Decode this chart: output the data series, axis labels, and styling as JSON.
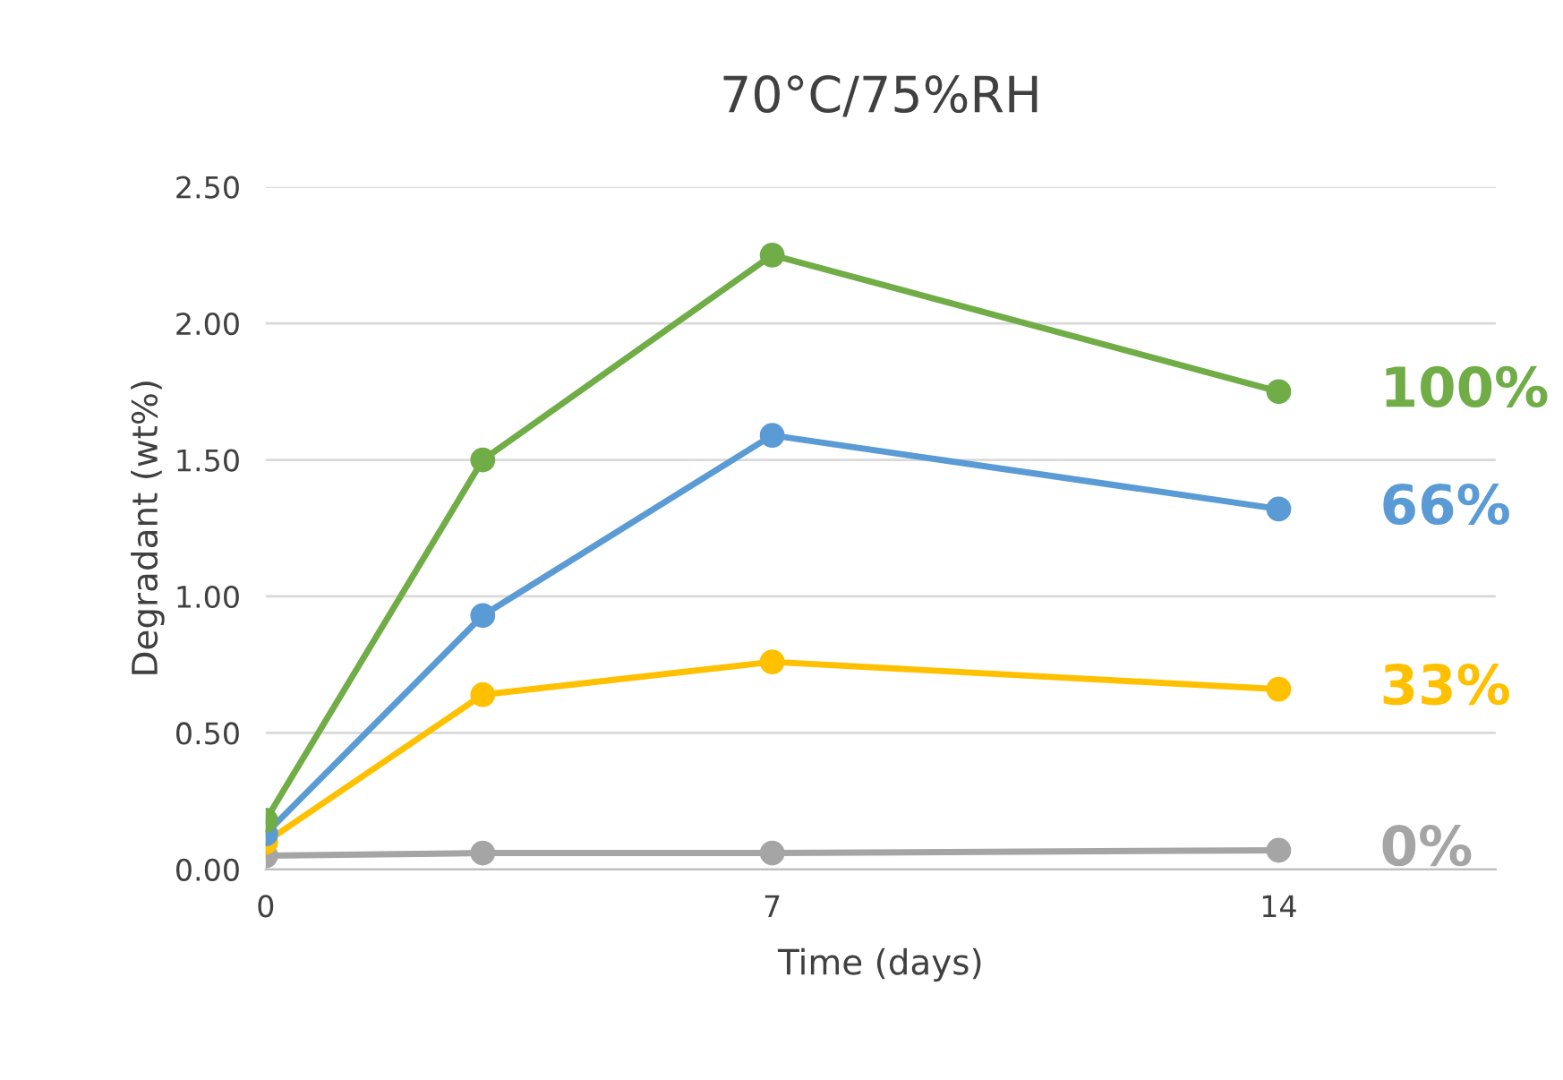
{
  "chart_data": {
    "type": "line",
    "title": "70°C/75%RH",
    "xlabel": "Time (days)",
    "ylabel": "Degradant (wt%)",
    "x": [
      0,
      3,
      7,
      14
    ],
    "xlim": [
      0,
      17
    ],
    "xticks": [
      0,
      7,
      14
    ],
    "ylim": [
      0,
      2.5
    ],
    "yticks": [
      {
        "value": 0,
        "label": "0.00"
      },
      {
        "value": 0.5,
        "label": "0.50"
      },
      {
        "value": 1.0,
        "label": "1.00"
      },
      {
        "value": 1.5,
        "label": "1.50"
      },
      {
        "value": 2.0,
        "label": "2.00"
      },
      {
        "value": 2.5,
        "label": "2.50"
      }
    ],
    "grid": "y",
    "marker": "circle",
    "line_style": "solid",
    "legend": false,
    "series": [
      {
        "name": "100%",
        "color": "#70ad47",
        "values": [
          0.18,
          1.5,
          2.25,
          1.75
        ]
      },
      {
        "name": "66%",
        "color": "#5b9bd5",
        "values": [
          0.13,
          0.93,
          1.59,
          1.32
        ]
      },
      {
        "name": "33%",
        "color": "#ffc000",
        "values": [
          0.1,
          0.64,
          0.76,
          0.66
        ]
      },
      {
        "name": "0%",
        "color": "#a5a5a5",
        "values": [
          0.05,
          0.06,
          0.06,
          0.07
        ]
      }
    ]
  }
}
